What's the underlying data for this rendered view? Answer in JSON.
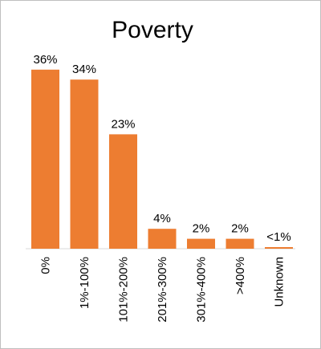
{
  "chart_data": {
    "type": "bar",
    "title": "Poverty",
    "categories": [
      "0%",
      "1%-100%",
      "101%-200%",
      "201%-300%",
      "301%-400%",
      ">400%",
      "Unknown"
    ],
    "values": [
      36,
      34,
      23,
      4,
      2,
      2,
      0.3
    ],
    "data_labels": [
      "36%",
      "34%",
      "23%",
      "4%",
      "2%",
      "2%",
      "<1%"
    ],
    "ylim": [
      0,
      40
    ],
    "grid": false,
    "legend": "none",
    "bar_color": "#ED7D31"
  }
}
